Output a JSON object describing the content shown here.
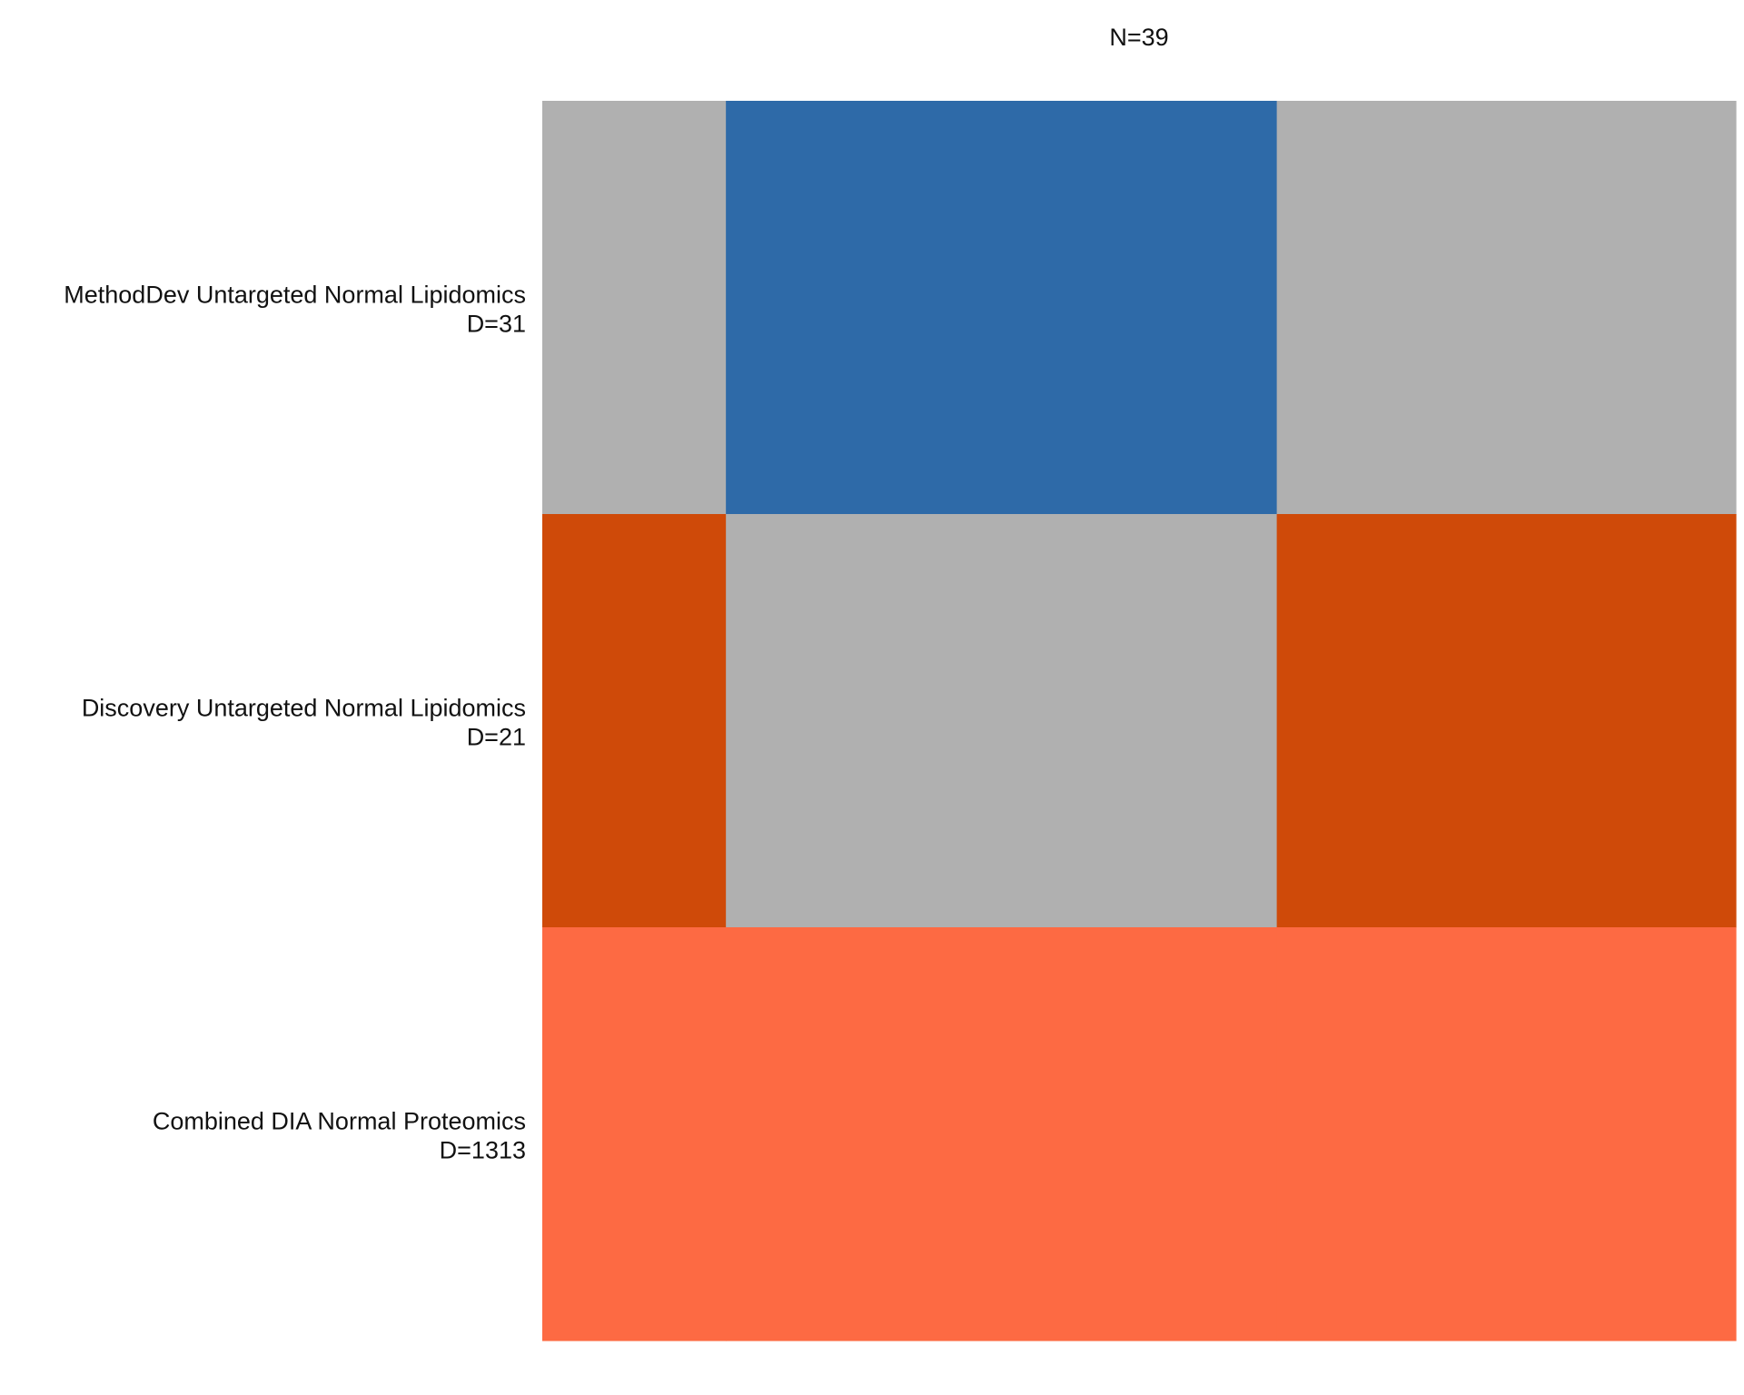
{
  "chart_data": {
    "type": "heatmap",
    "column_total_label": "N=39",
    "columns": [
      {
        "id": "c1",
        "count": 6
      },
      {
        "id": "c2",
        "count": 18
      },
      {
        "id": "c3",
        "count": 15
      }
    ],
    "rows": [
      {
        "label": "MethodDev Untargeted Normal Lipidomics",
        "sublabel": "D=31"
      },
      {
        "label": "Discovery Untargeted Normal Lipidomics",
        "sublabel": "D=21"
      },
      {
        "label": "Combined DIA Normal Proteomics",
        "sublabel": "D=1313"
      }
    ],
    "cells": [
      [
        "missing",
        "methoddev",
        "missing"
      ],
      [
        "discovery",
        "missing",
        "discovery"
      ],
      [
        "proteomics",
        "proteomics",
        "proteomics"
      ]
    ],
    "colors": {
      "missing": "#b0b0b0",
      "methoddev": "#2e6aa8",
      "discovery": "#cf4a09",
      "proteomics": "#fd6a43"
    }
  }
}
